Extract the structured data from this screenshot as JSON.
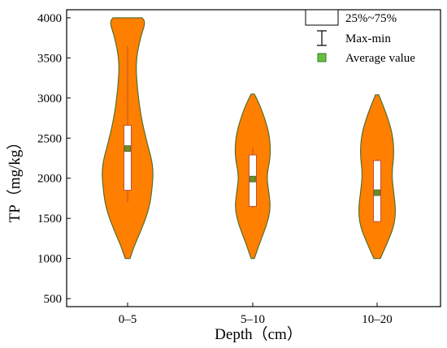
{
  "chart_data": {
    "type": "violin",
    "xlabel": "Depth（cm）",
    "ylabel": "TP（mg/kg）",
    "ylim": [
      400,
      4100
    ],
    "yticks": [
      500,
      1000,
      1500,
      2000,
      2500,
      3000,
      3500,
      4000
    ],
    "categories": [
      "0–5",
      "5–10",
      "10–20"
    ],
    "groups": [
      {
        "category": "0–5",
        "violin_range": [
          1000,
          4000
        ],
        "q1": 1850,
        "q3": 2660,
        "min": 1700,
        "max": 3650,
        "mean": 2370
      },
      {
        "category": "5–10",
        "violin_range": [
          1000,
          3050
        ],
        "q1": 1650,
        "q3": 2290,
        "min": 1630,
        "max": 2380,
        "mean": 1990
      },
      {
        "category": "10–20",
        "violin_range": [
          1000,
          3040
        ],
        "q1": 1460,
        "q3": 2220,
        "min": 1460,
        "max": 2240,
        "mean": 1820
      }
    ],
    "colors": {
      "violin_fill": "#ff7f00",
      "violin_edge": "#4a6b2a",
      "box_fill": "#ffffff",
      "box_edge": "#c0503a",
      "mean_marker": "#6b8e23"
    },
    "legend": {
      "position": "top-right",
      "entries": [
        "25%~75%",
        "Max-min",
        "Average value"
      ]
    },
    "grid": false
  }
}
